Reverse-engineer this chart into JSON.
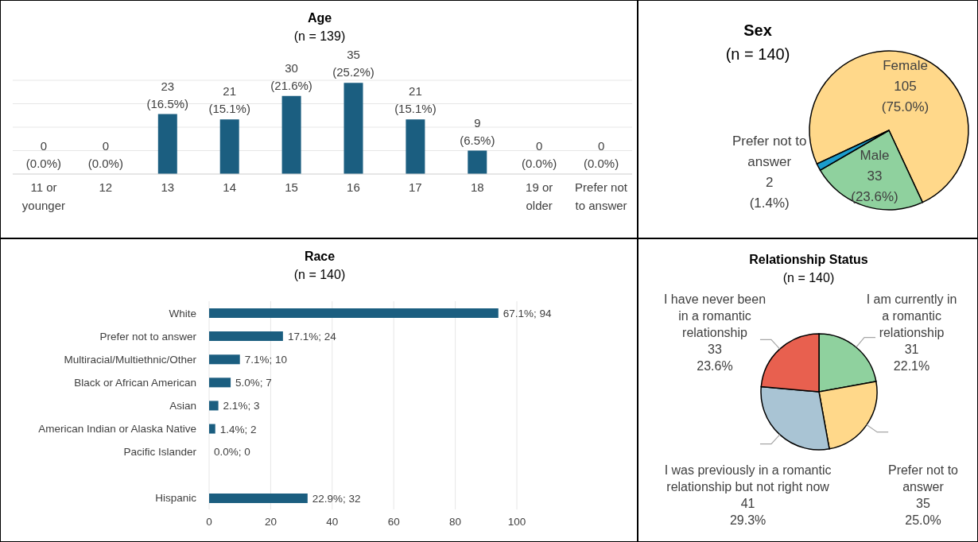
{
  "chart_data": [
    {
      "type": "bar",
      "title": "Age",
      "subtitle": "(n = 139)",
      "categories": [
        "11 or younger",
        "12",
        "13",
        "14",
        "15",
        "16",
        "17",
        "18",
        "19 or older",
        "Prefer not to answer"
      ],
      "values": [
        0,
        0,
        23,
        21,
        30,
        35,
        21,
        9,
        0,
        0
      ],
      "value_labels": [
        "0 (0.0%)",
        "0 (0.0%)",
        "23 (16.5%)",
        "21 (15.1%)",
        "30 (21.6%)",
        "35 (25.2%)",
        "21 (15.1%)",
        "9 (6.5%)",
        "0 (0.0%)",
        "0 (0.0%)"
      ],
      "color": "#1b5e80",
      "grid": "y",
      "tick_labels": "x"
    },
    {
      "type": "pie",
      "title": "Sex",
      "subtitle": "(n = 140)",
      "categories": [
        "Female",
        "Male",
        "Prefer not to answer"
      ],
      "values": [
        105,
        33,
        2
      ],
      "value_labels": [
        "105 (75.0%)",
        "33 (23.6%)",
        "2 (1.4%)"
      ],
      "colors": [
        "#ffd88a",
        "#8fd19e",
        "#1b9ccc"
      ]
    },
    {
      "type": "bar",
      "orientation": "horizontal",
      "title": "Race",
      "subtitle": "(n = 140)",
      "categories": [
        "White",
        "Prefer not to answer",
        "Multiracial/Multiethnic/Other",
        "Black or African American",
        "Asian",
        "American Indian or Alaska Native",
        "Pacific Islander",
        null,
        "Hispanic"
      ],
      "values": [
        94,
        24,
        10,
        7,
        3,
        2,
        0,
        null,
        32
      ],
      "value_labels": [
        "67.1%; 94",
        "17.1%; 24",
        "7.1%; 10",
        "5.0%; 7",
        "2.1%; 3",
        "1.4%; 2",
        "0.0%; 0",
        null,
        "22.9%; 32"
      ],
      "color": "#1b5e80",
      "xlim": [
        0,
        100
      ],
      "xticks": [
        0,
        20,
        40,
        60,
        80,
        100
      ],
      "grid": "x"
    },
    {
      "type": "pie",
      "title": "Relationship Status",
      "subtitle": "(n = 140)",
      "categories": [
        "I am currently in a romantic relationship",
        "Prefer not to answer",
        "I was previously in a romantic relationship but not right now",
        "I have never been in a romantic relationship"
      ],
      "values": [
        31,
        35,
        41,
        33
      ],
      "value_labels": [
        "31 22.1%",
        "35 25.0%",
        "41 29.3%",
        "33 23.6%"
      ],
      "colors": [
        "#8fd19e",
        "#ffd88a",
        "#a9c4d4",
        "#e8604f"
      ]
    }
  ]
}
